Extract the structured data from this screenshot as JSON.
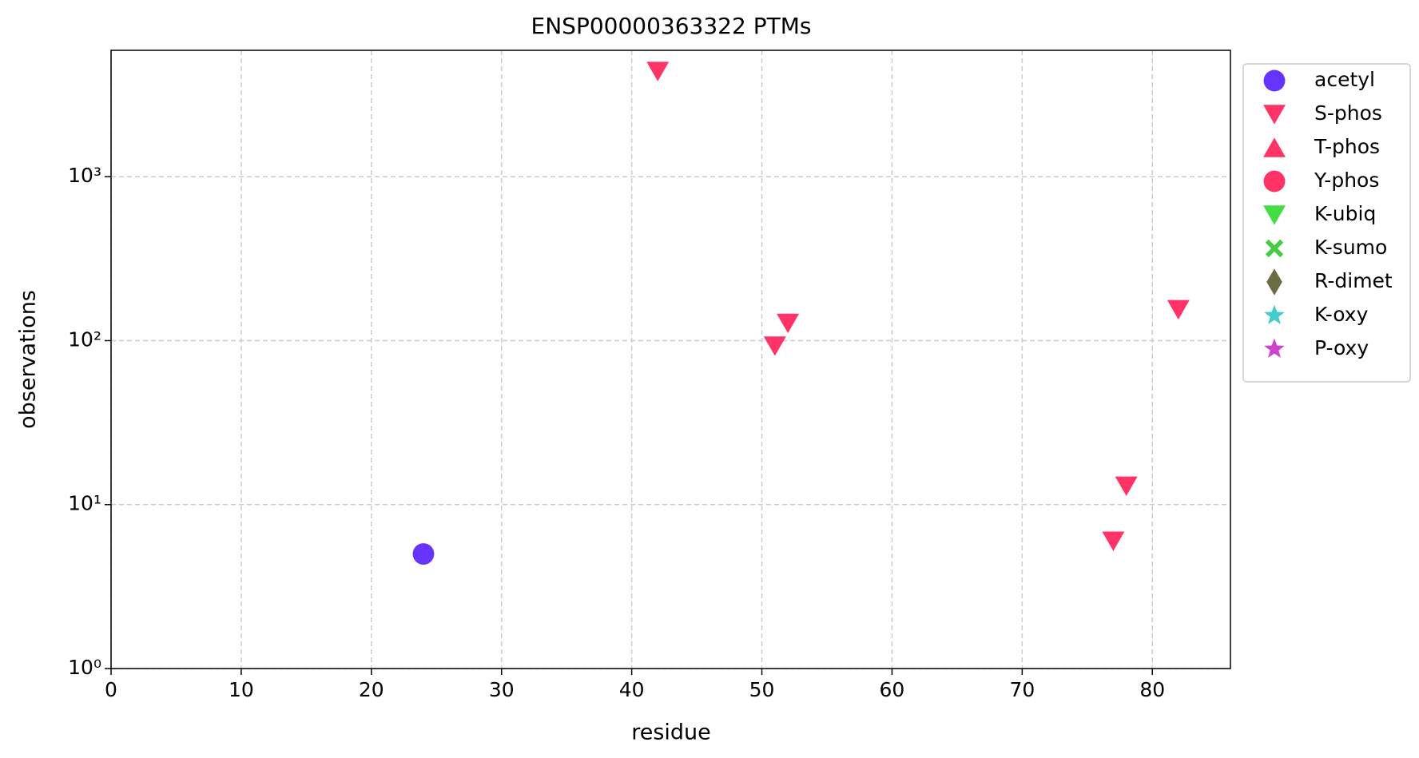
{
  "chart_data": {
    "type": "scatter",
    "title": "ENSP00000363322 PTMs",
    "x_label": "residue",
    "y_label": "observations",
    "xlim": [
      0,
      86
    ],
    "xticks": [
      0,
      10,
      20,
      30,
      40,
      50,
      60,
      70,
      80
    ],
    "ylim": [
      1,
      5900
    ],
    "y_scale": "log",
    "yticks": [
      {
        "value": 1,
        "label": "10⁰"
      },
      {
        "value": 10,
        "label": "10¹"
      },
      {
        "value": 100,
        "label": "10²"
      },
      {
        "value": 1000,
        "label": "10³"
      }
    ],
    "grid": true,
    "legend": "outside-upper-right",
    "series": [
      {
        "name": "acetyl",
        "color": "#6633ff",
        "marker": "circle",
        "x": [
          24
        ],
        "values": [
          5
        ]
      },
      {
        "name": "S-phos",
        "color": "#ff3366",
        "marker": "triangle-down",
        "x": [
          42,
          51,
          52,
          77,
          78,
          82
        ],
        "values": [
          4400,
          93,
          128,
          6,
          13,
          155
        ]
      },
      {
        "name": "T-phos",
        "color": "#ff3366",
        "marker": "triangle-up",
        "x": [],
        "values": []
      },
      {
        "name": "Y-phos",
        "color": "#ff3366",
        "marker": "circle",
        "x": [],
        "values": []
      },
      {
        "name": "K-ubiq",
        "color": "#44dd44",
        "marker": "triangle-down",
        "x": [],
        "values": []
      },
      {
        "name": "K-sumo",
        "color": "#44cc44",
        "marker": "x",
        "x": [],
        "values": []
      },
      {
        "name": "R-dimet",
        "color": "#6b6b44",
        "marker": "diamond",
        "x": [],
        "values": []
      },
      {
        "name": "K-oxy",
        "color": "#44cccc",
        "marker": "star",
        "x": [],
        "values": []
      },
      {
        "name": "P-oxy",
        "color": "#cc44cc",
        "marker": "star",
        "x": [],
        "values": []
      }
    ]
  }
}
